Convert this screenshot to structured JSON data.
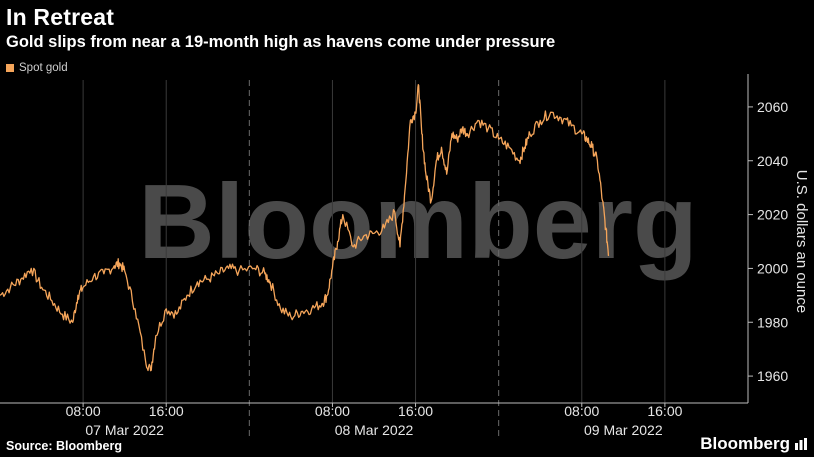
{
  "header": {
    "title": "In Retreat",
    "subtitle": "Gold slips from near a 19-month high as havens come under pressure"
  },
  "footer": {
    "source": "Source: Bloomberg",
    "brand": "Bloomberg"
  },
  "watermark": "Bloomberg",
  "colors": {
    "background": "#000000",
    "series": "#f5a55a",
    "grid": "#3a3a3a",
    "watermark": "#4a4a4a"
  },
  "chart_data": {
    "type": "line",
    "title": "In Retreat",
    "subtitle": "Gold slips from near a 19-month high as havens come under pressure",
    "xlabel": "",
    "ylabel": "U.S. dollars an ounce",
    "x_unit": "hours since 07 Mar 2022 00:00",
    "xlim": [
      0,
      72
    ],
    "ylim": [
      1950,
      2070
    ],
    "y_ticks": [
      1960,
      1980,
      2000,
      2020,
      2040,
      2060
    ],
    "x_ticks": [
      {
        "hour": 8,
        "label": "08:00"
      },
      {
        "hour": 16,
        "label": "16:00"
      },
      {
        "hour": 32,
        "label": "08:00"
      },
      {
        "hour": 40,
        "label": "16:00"
      },
      {
        "hour": 56,
        "label": "08:00"
      },
      {
        "hour": 64,
        "label": "16:00"
      }
    ],
    "day_labels": [
      {
        "hour": 12,
        "label": "07 Mar 2022"
      },
      {
        "hour": 36,
        "label": "08 Mar 2022"
      },
      {
        "hour": 60,
        "label": "09 Mar 2022"
      }
    ],
    "day_boundaries": [
      24,
      48
    ],
    "grid": {
      "vertical": true,
      "horizontal": false
    },
    "legend_position": "top-left",
    "series": [
      {
        "name": "Spot gold",
        "color": "#f5a55a",
        "x": [
          0,
          1,
          2,
          3,
          4,
          5,
          6,
          7,
          7.5,
          8,
          9,
          10,
          11,
          11.5,
          12,
          13,
          14,
          14.5,
          15,
          16,
          17,
          18,
          19,
          20,
          21,
          22,
          23,
          24.5,
          25.5,
          26,
          27,
          28,
          29,
          30,
          31,
          31.5,
          32,
          32.5,
          33,
          34,
          35,
          36,
          37,
          38,
          38.5,
          39,
          39.5,
          40,
          40.3,
          40.6,
          41,
          41.5,
          42,
          42.5,
          43,
          43.5,
          44,
          44.5,
          45,
          46,
          47,
          48,
          49,
          50,
          50.5,
          51,
          52,
          53,
          54,
          55,
          56,
          56.5,
          57,
          57.5,
          58,
          58.3,
          58.6
        ],
        "values": [
          1990,
          1993,
          1996,
          2000,
          1993,
          1988,
          1983,
          1980,
          1990,
          1993,
          1997,
          1998,
          2001,
          2002,
          1999,
          1985,
          1966,
          1962,
          1975,
          1985,
          1983,
          1990,
          1995,
          1996,
          1998,
          2000,
          1999,
          2000,
          1998,
          1995,
          1985,
          1982,
          1984,
          1985,
          1987,
          1990,
          2000,
          2010,
          2020,
          2008,
          2012,
          2013,
          2015,
          2021,
          2008,
          2030,
          2055,
          2058,
          2068,
          2050,
          2035,
          2025,
          2040,
          2045,
          2035,
          2050,
          2048,
          2052,
          2050,
          2055,
          2052,
          2048,
          2045,
          2040,
          2045,
          2050,
          2055,
          2058,
          2056,
          2053,
          2050,
          2048,
          2045,
          2040,
          2025,
          2015,
          2005
        ]
      }
    ]
  }
}
